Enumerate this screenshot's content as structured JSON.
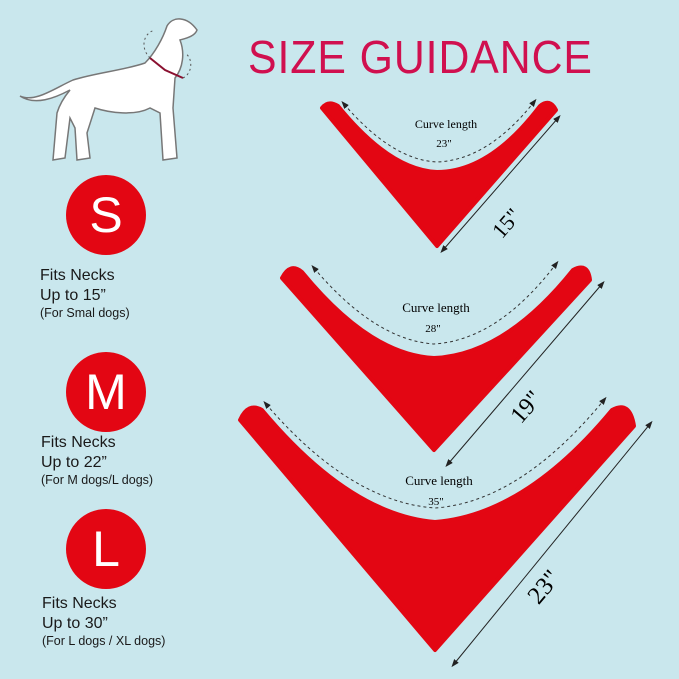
{
  "title": "SIZE GUIDANCE",
  "colors": {
    "background": "#c9e7ed",
    "accent": "#e30613",
    "title": "#d0104f"
  },
  "dog_illustration": "dog-with-collar-icon",
  "sizes": [
    {
      "letter": "S",
      "line1": "Fits Necks",
      "line2": "Up to 15”",
      "note": "(For Smal dogs)",
      "curve_label": "Curve length",
      "curve_length": "23\"",
      "side_length": "15\""
    },
    {
      "letter": "M",
      "line1": "Fits Necks",
      "line2": "Up to 22”",
      "note": "(For M dogs/L dogs)",
      "curve_label": "Curve length",
      "curve_length": "28\"",
      "side_length": "19\""
    },
    {
      "letter": "L",
      "line1": "Fits Necks",
      "line2": "Up to 30”",
      "note": "(For L dogs / XL dogs)",
      "curve_label": "Curve length",
      "curve_length": "35\"",
      "side_length": "23\""
    }
  ]
}
